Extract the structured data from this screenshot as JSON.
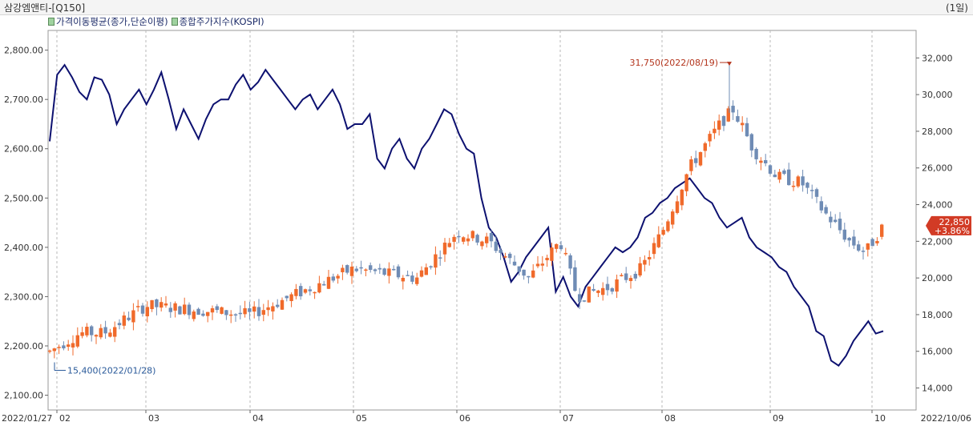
{
  "header": {
    "title": "삼강엠앤티-[Q150]",
    "period": "(1일)"
  },
  "legend": {
    "items": [
      {
        "label": "가격이동평균(종가,단순이평)"
      },
      {
        "label": "종합주가지수(KOSPI)"
      }
    ]
  },
  "chart_data": {
    "type": "line",
    "x_tick_labels": [
      "2022/01/27",
      "02",
      "03",
      "04",
      "05",
      "06",
      "07",
      "08",
      "09",
      "10",
      "2022/10/06"
    ],
    "left_axis": {
      "ticks": [
        "2,800.00",
        "2,700.00",
        "2,600.00",
        "2,500.00",
        "2,400.00",
        "2,300.00",
        "2,200.00",
        "2,100.00"
      ],
      "ylim": [
        2070,
        2840
      ]
    },
    "right_axis": {
      "ticks": [
        "32,000",
        "30,000",
        "28,000",
        "26,000",
        "24,000",
        "22,000",
        "20,000",
        "18,000",
        "16,000",
        "14,000"
      ],
      "ylim": [
        12800,
        33500
      ]
    },
    "series": [
      {
        "name": "종합주가지수(KOSPI)",
        "color": "#0d1170",
        "values": [
          2615,
          2750,
          2770,
          2745,
          2715,
          2700,
          2745,
          2740,
          2710,
          2650,
          2680,
          2700,
          2720,
          2690,
          2720,
          2755,
          2700,
          2640,
          2680,
          2650,
          2620,
          2660,
          2690,
          2700,
          2700,
          2730,
          2750,
          2720,
          2735,
          2760,
          2740,
          2720,
          2700,
          2680,
          2700,
          2710,
          2680,
          2700,
          2720,
          2690,
          2640,
          2650,
          2650,
          2670,
          2580,
          2560,
          2600,
          2620,
          2580,
          2560,
          2600,
          2620,
          2650,
          2680,
          2670,
          2630,
          2600,
          2590,
          2500,
          2440,
          2420,
          2380,
          2330,
          2350,
          2380,
          2400,
          2420,
          2440,
          2310,
          2340,
          2300,
          2280,
          2320,
          2340,
          2360,
          2380,
          2400,
          2390,
          2400,
          2420,
          2460,
          2470,
          2490,
          2500,
          2520,
          2530,
          2540,
          2520,
          2500,
          2490,
          2460,
          2440,
          2450,
          2460,
          2420,
          2400,
          2390,
          2380,
          2360,
          2350,
          2320,
          2300,
          2280,
          2230,
          2220,
          2170,
          2160,
          2180,
          2210,
          2230,
          2250,
          2225,
          2230
        ]
      },
      {
        "name": "삼강엠앤티",
        "up_color": "#f06a2b",
        "down_color": "#6f8cb5"
      }
    ],
    "annotations": [
      {
        "text": "31,750(2022/08/19)",
        "value": 31750,
        "color": "#b3341c"
      },
      {
        "text": "15,400(2022/01/28)",
        "value": 15400,
        "color": "#2a5a9a"
      }
    ],
    "last_price": {
      "price": "22,850",
      "change": "+3.86%",
      "color": "#d23b25"
    }
  }
}
